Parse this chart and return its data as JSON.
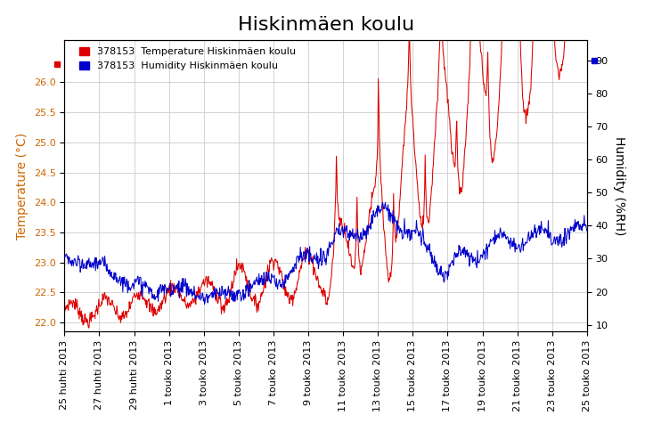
{
  "title": "Hiskinmäen koulu",
  "temp_label": "378153  Temperature Hiskinmäen koulu",
  "humid_label": "378153  Humidity Hiskinmäen koulu",
  "ylabel_left": "Temperature (°C)",
  "ylabel_right": "Humidity (%RH)",
  "temp_color": "#dd0000",
  "humid_color": "#0000cc",
  "left_tick_color": "#cc6600",
  "ylim_left": [
    21.85,
    26.7
  ],
  "ylim_right": [
    8,
    96
  ],
  "yticks_left": [
    22.0,
    22.5,
    23.0,
    23.5,
    24.0,
    24.5,
    25.0,
    25.5,
    26.0
  ],
  "yticks_right": [
    10,
    20,
    30,
    40,
    50,
    60,
    70,
    80,
    90
  ],
  "xtick_labels": [
    "25 huhti 2013",
    "27 huhti 2013",
    "29 huhti 2013",
    "1 touko 2013",
    "3 touko 2013",
    "5 touko 2013",
    "7 touko 2013",
    "9 touko 2013",
    "11 touko 2013",
    "13 touko 2013",
    "15 touko 2013",
    "17 touko 2013",
    "19 touko 2013",
    "21 touko 2013",
    "23 touko 2013",
    "25 touko 2013"
  ],
  "background_color": "#ffffff",
  "grid_color": "#cccccc",
  "title_fontsize": 16,
  "axis_label_fontsize": 10,
  "tick_fontsize": 8,
  "legend_fontsize": 8,
  "n_points": 960
}
